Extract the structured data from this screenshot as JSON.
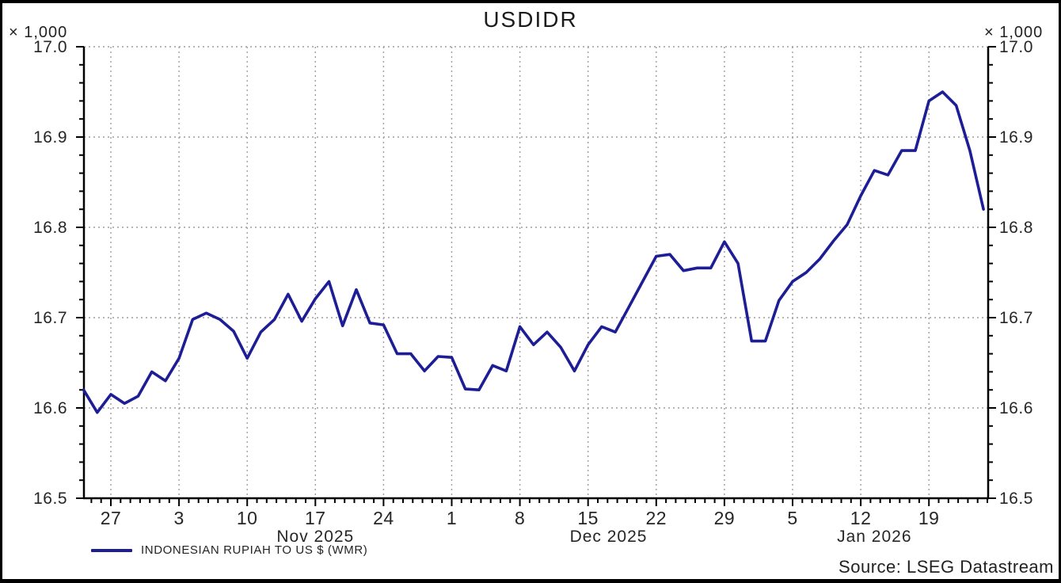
{
  "title": "USDIDR",
  "axis_unit_label": "× 1,000",
  "legend": {
    "series_label": "INDONESIAN RUPIAH TO US $ (WMR)"
  },
  "source": "Source: LSEG Datastream",
  "colors": {
    "line": "#1d1d96",
    "grid": "#9e9e9e",
    "axis": "#000000",
    "text": "#262626"
  },
  "chart_data": {
    "type": "line",
    "title": "USDIDR",
    "unit_note": "y-axis values are × 1,000 IDR per US$",
    "xlabel": "",
    "ylabel": "",
    "ylim": [
      16.5,
      17.0
    ],
    "y_major_ticks": [
      17.0,
      16.9,
      16.8,
      16.7,
      16.6,
      16.5
    ],
    "y_minor_step": 0.02,
    "grid": "dotted, weekly vertical and 0.1 horizontal",
    "legend_position": "bottom-left",
    "x_major_labels": [
      "27",
      "3",
      "10",
      "17",
      "24",
      "1",
      "8",
      "15",
      "22",
      "29",
      "5",
      "12",
      "19"
    ],
    "month_labels": [
      "Nov 2025",
      "Dec 2025",
      "Jan 2026"
    ],
    "first_major_index": 2,
    "points_per_week": 5,
    "series": [
      {
        "name": "INDONESIAN RUPIAH TO US $ (WMR)",
        "dates": [
          "2025-10-23",
          "2025-10-24",
          "2025-10-27",
          "2025-10-28",
          "2025-10-29",
          "2025-10-30",
          "2025-10-31",
          "2025-11-03",
          "2025-11-04",
          "2025-11-05",
          "2025-11-06",
          "2025-11-07",
          "2025-11-10",
          "2025-11-11",
          "2025-11-12",
          "2025-11-13",
          "2025-11-14",
          "2025-11-17",
          "2025-11-18",
          "2025-11-19",
          "2025-11-20",
          "2025-11-21",
          "2025-11-24",
          "2025-11-25",
          "2025-11-26",
          "2025-11-27",
          "2025-11-28",
          "2025-12-01",
          "2025-12-02",
          "2025-12-03",
          "2025-12-04",
          "2025-12-05",
          "2025-12-08",
          "2025-12-09",
          "2025-12-10",
          "2025-12-11",
          "2025-12-12",
          "2025-12-15",
          "2025-12-16",
          "2025-12-17",
          "2025-12-18",
          "2025-12-19",
          "2025-12-22",
          "2025-12-23",
          "2025-12-24",
          "2025-12-25",
          "2025-12-26",
          "2025-12-29",
          "2025-12-30",
          "2025-12-31",
          "2026-01-01",
          "2026-01-02",
          "2026-01-05",
          "2026-01-06",
          "2026-01-07",
          "2026-01-08",
          "2026-01-09",
          "2026-01-12",
          "2026-01-13",
          "2026-01-14",
          "2026-01-15",
          "2026-01-16",
          "2026-01-19",
          "2026-01-20",
          "2026-01-21",
          "2026-01-22",
          "2026-01-23"
        ],
        "values": [
          16.62,
          16.595,
          16.615,
          16.605,
          16.613,
          16.64,
          16.63,
          16.655,
          16.698,
          16.705,
          16.698,
          16.685,
          16.655,
          16.684,
          16.698,
          16.726,
          16.696,
          16.721,
          16.74,
          16.691,
          16.731,
          16.694,
          16.692,
          16.66,
          16.66,
          16.641,
          16.657,
          16.656,
          16.621,
          16.62,
          16.647,
          16.641,
          16.69,
          16.67,
          16.684,
          16.667,
          16.641,
          16.67,
          16.69,
          16.684,
          16.712,
          16.74,
          16.768,
          16.77,
          16.752,
          16.755,
          16.755,
          16.784,
          16.76,
          16.674,
          16.674,
          16.719,
          16.74,
          16.75,
          16.765,
          16.785,
          16.803,
          16.835,
          16.863,
          16.858,
          16.885,
          16.885,
          16.94,
          16.95,
          16.935,
          16.885,
          16.82
        ]
      }
    ]
  }
}
